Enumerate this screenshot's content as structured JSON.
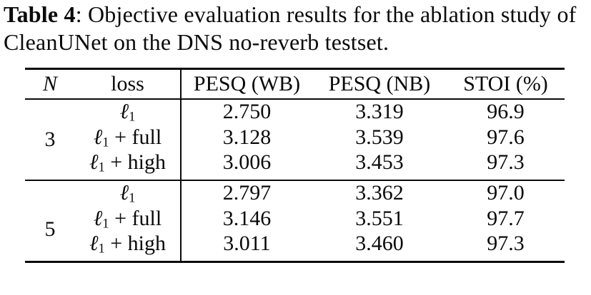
{
  "colors": {
    "background": "#ffffff",
    "text": "#0a0a0a",
    "rule": "#0a0a0a"
  },
  "caption": {
    "label": "Table 4",
    "text": ": Objective evaluation results for the ablation study of CleanUNet on the DNS no-reverb testset."
  },
  "table": {
    "columns": [
      "N",
      "loss",
      "PESQ (WB)",
      "PESQ (NB)",
      "STOI (%)"
    ],
    "groups": [
      {
        "n": "3",
        "rows": [
          {
            "loss_base": "ℓ",
            "loss_sub": "1",
            "loss_rest": "",
            "pesq_wb": "2.750",
            "pesq_nb": "3.319",
            "stoi": "96.9"
          },
          {
            "loss_base": "ℓ",
            "loss_sub": "1",
            "loss_rest": " + full",
            "pesq_wb": "3.128",
            "pesq_nb": "3.539",
            "stoi": "97.6"
          },
          {
            "loss_base": "ℓ",
            "loss_sub": "1",
            "loss_rest": " + high",
            "pesq_wb": "3.006",
            "pesq_nb": "3.453",
            "stoi": "97.3"
          }
        ]
      },
      {
        "n": "5",
        "rows": [
          {
            "loss_base": "ℓ",
            "loss_sub": "1",
            "loss_rest": "",
            "pesq_wb": "2.797",
            "pesq_nb": "3.362",
            "stoi": "97.0"
          },
          {
            "loss_base": "ℓ",
            "loss_sub": "1",
            "loss_rest": " + full",
            "pesq_wb": "3.146",
            "pesq_nb": "3.551",
            "stoi": "97.7"
          },
          {
            "loss_base": "ℓ",
            "loss_sub": "1",
            "loss_rest": " + high",
            "pesq_wb": "3.011",
            "pesq_nb": "3.460",
            "stoi": "97.3"
          }
        ]
      }
    ]
  }
}
